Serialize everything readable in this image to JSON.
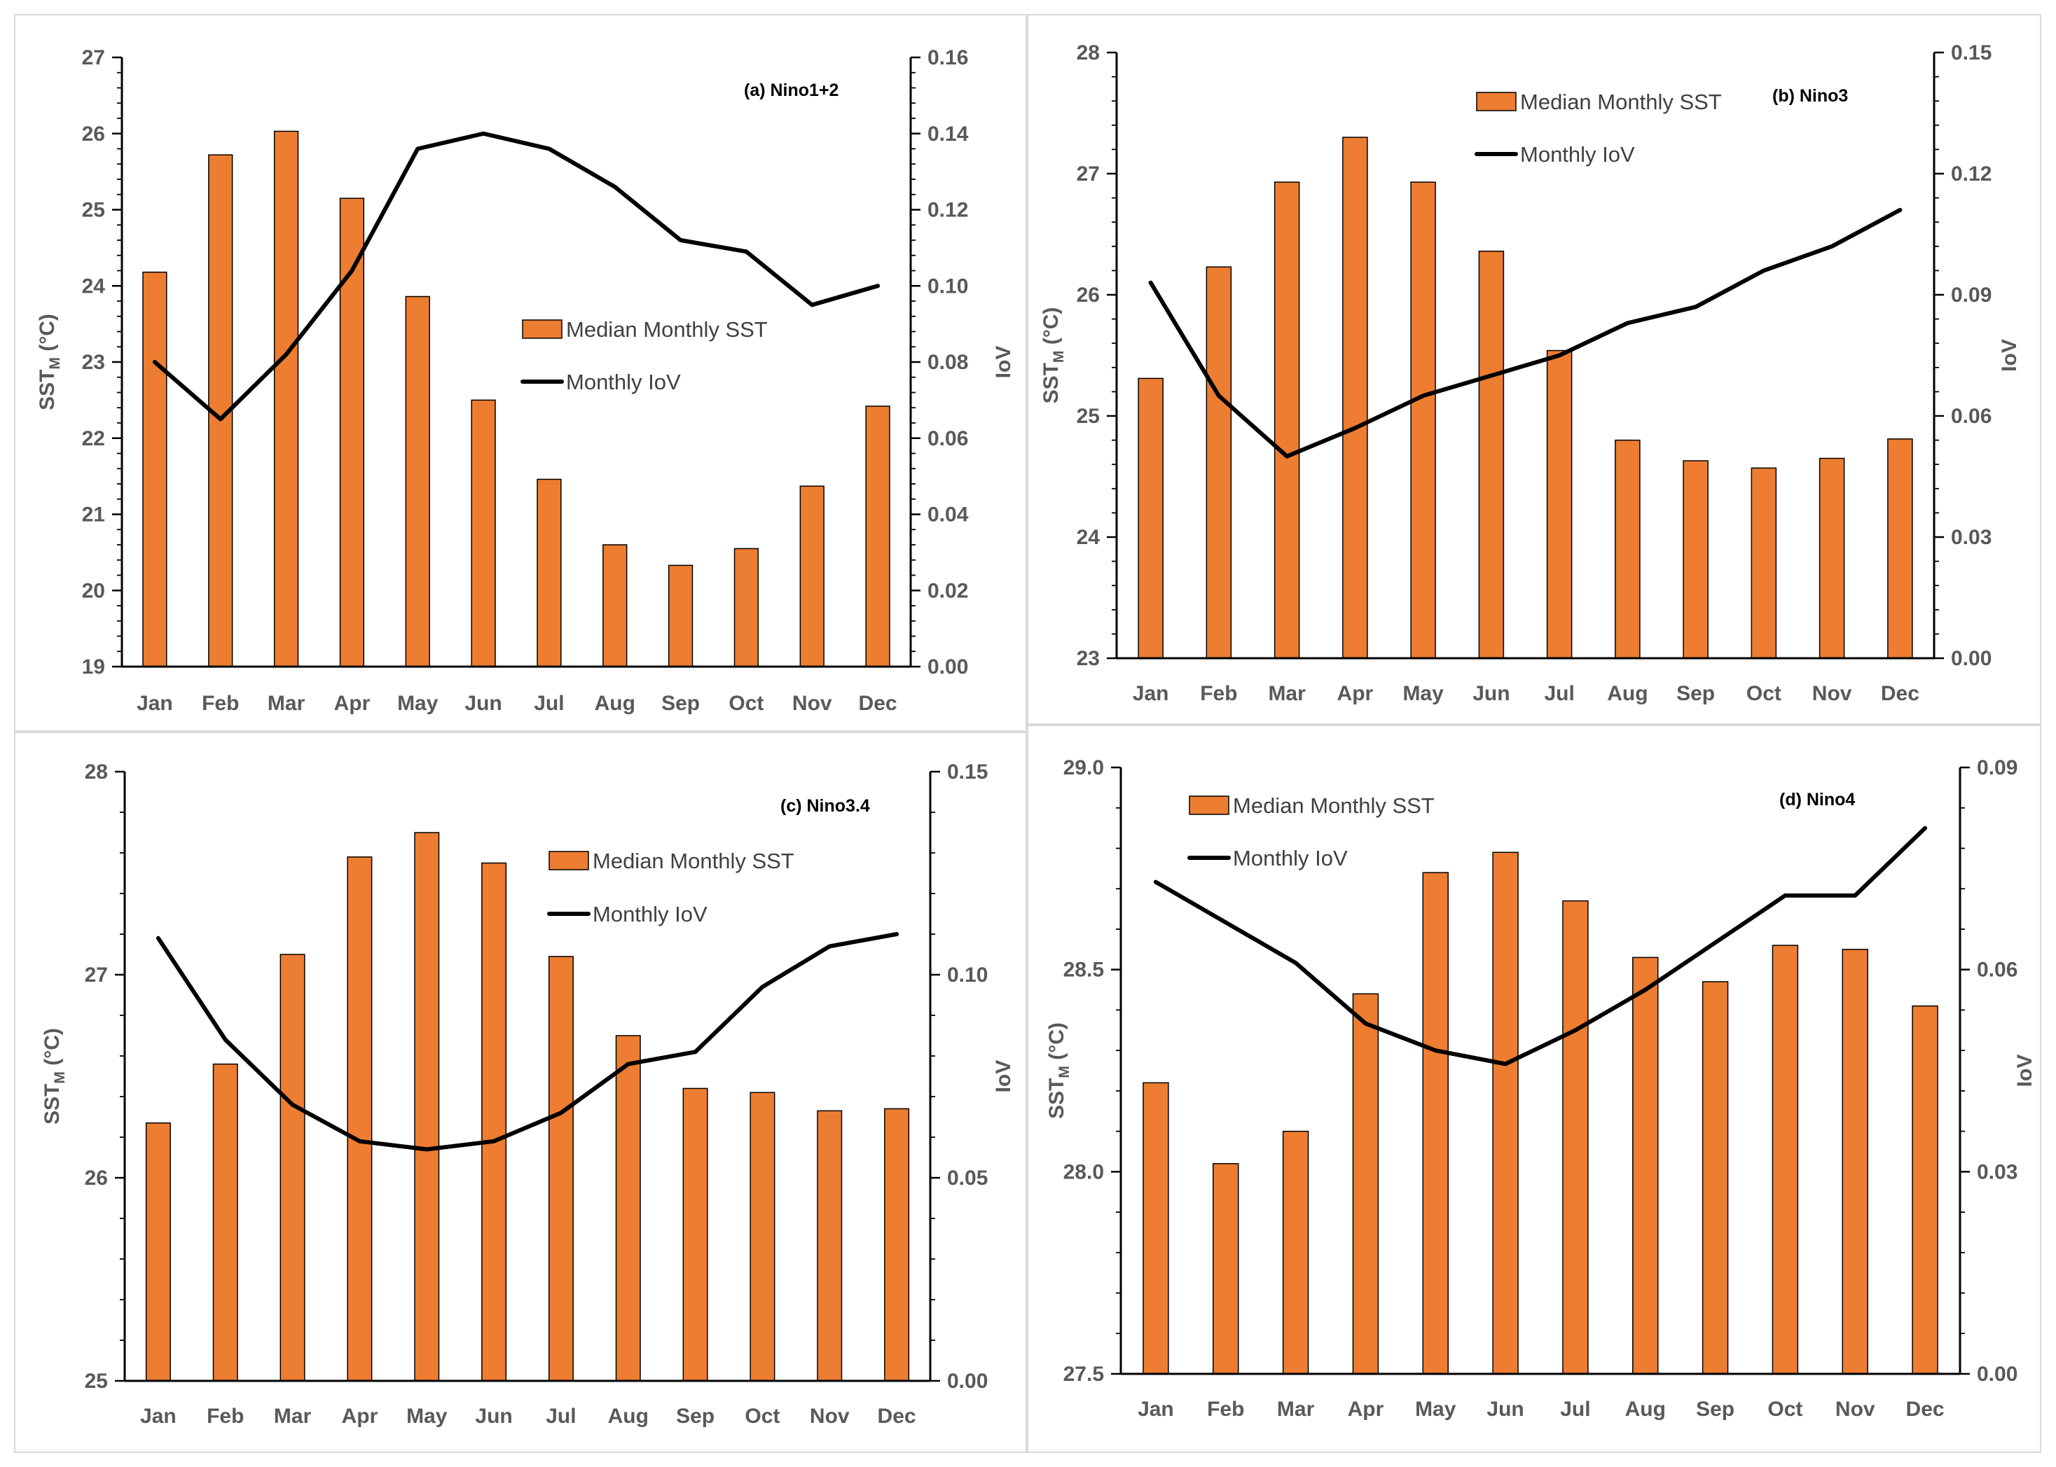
{
  "chart_data": [
    {
      "id": "a",
      "type": "bar",
      "title": "(a) Nino1+2",
      "categories": [
        "Jan",
        "Feb",
        "Mar",
        "Apr",
        "May",
        "Jun",
        "Jul",
        "Aug",
        "Sep",
        "Oct",
        "Nov",
        "Dec"
      ],
      "series": [
        {
          "name": "Median Monthly SST",
          "kind": "bar",
          "axis": "left",
          "values": [
            24.18,
            25.72,
            26.03,
            25.15,
            23.86,
            22.5,
            21.46,
            20.6,
            20.33,
            20.55,
            21.37,
            22.42
          ]
        },
        {
          "name": "Monthly IoV",
          "kind": "line",
          "axis": "right",
          "values": [
            0.08,
            0.065,
            0.082,
            0.104,
            0.136,
            0.14,
            0.136,
            0.126,
            0.112,
            0.109,
            0.095,
            0.1
          ]
        }
      ],
      "ylabel": "SST",
      "ylabel_sub": "M",
      "ylabel_unit": " (°C)",
      "y2label": "IoV",
      "ylim": [
        19,
        27
      ],
      "yticks": [
        19,
        20,
        21,
        22,
        23,
        24,
        25,
        26,
        27
      ],
      "ytick_labels": [
        "19",
        "20",
        "21",
        "22",
        "23",
        "24",
        "25",
        "26",
        "27"
      ],
      "y2lim": [
        0,
        0.16
      ],
      "y2ticks": [
        0,
        0.02,
        0.04,
        0.06,
        0.08,
        0.1,
        0.12,
        0.14,
        0.16
      ],
      "y2tick_labels": [
        "0.00",
        "0.02",
        "0.04",
        "0.06",
        "0.08",
        "0.10",
        "0.12",
        "0.14",
        "0.16"
      ],
      "legend_position": "center-right"
    },
    {
      "id": "b",
      "type": "bar",
      "title": "(b) Nino3",
      "categories": [
        "Jan",
        "Feb",
        "Mar",
        "Apr",
        "May",
        "Jun",
        "Jul",
        "Aug",
        "Sep",
        "Oct",
        "Nov",
        "Dec"
      ],
      "series": [
        {
          "name": "Median Monthly SST",
          "kind": "bar",
          "axis": "left",
          "values": [
            25.31,
            26.23,
            26.93,
            27.3,
            26.93,
            26.36,
            25.54,
            24.8,
            24.63,
            24.57,
            24.65,
            24.81
          ]
        },
        {
          "name": "Monthly IoV",
          "kind": "line",
          "axis": "right",
          "values": [
            0.093,
            0.065,
            0.05,
            0.057,
            0.065,
            0.07,
            0.075,
            0.083,
            0.087,
            0.096,
            0.102,
            0.111
          ]
        }
      ],
      "ylabel": "SST",
      "ylabel_sub": "M",
      "ylabel_unit": " (°C)",
      "y2label": "IoV",
      "ylim": [
        23,
        28
      ],
      "yticks": [
        23,
        24,
        25,
        26,
        27,
        28
      ],
      "ytick_labels": [
        "23",
        "24",
        "25",
        "26",
        "27",
        "28"
      ],
      "y2lim": [
        0,
        0.15
      ],
      "y2ticks": [
        0,
        0.03,
        0.06,
        0.09,
        0.12,
        0.15
      ],
      "y2tick_labels": [
        "0.00",
        "0.03",
        "0.06",
        "0.09",
        "0.12",
        "0.15"
      ],
      "legend_position": "top-center"
    },
    {
      "id": "c",
      "type": "bar",
      "title": "(c) Nino3.4",
      "categories": [
        "Jan",
        "Feb",
        "Mar",
        "Apr",
        "May",
        "Jun",
        "Jul",
        "Aug",
        "Sep",
        "Oct",
        "Nov",
        "Dec"
      ],
      "series": [
        {
          "name": "Median Monthly SST",
          "kind": "bar",
          "axis": "left",
          "values": [
            26.27,
            26.56,
            27.1,
            27.58,
            27.7,
            27.55,
            27.09,
            26.7,
            26.44,
            26.42,
            26.33,
            26.34
          ]
        },
        {
          "name": "Monthly IoV",
          "kind": "line",
          "axis": "right",
          "values": [
            0.109,
            0.084,
            0.068,
            0.059,
            0.057,
            0.059,
            0.066,
            0.078,
            0.081,
            0.097,
            0.107,
            0.11
          ]
        }
      ],
      "ylabel": "SST",
      "ylabel_sub": "M",
      "ylabel_unit": " (°C)",
      "y2label": "IoV",
      "ylim": [
        25,
        28
      ],
      "yticks": [
        25,
        26,
        27,
        28
      ],
      "ytick_labels": [
        "25",
        "26",
        "27",
        "28"
      ],
      "y2lim": [
        0,
        0.15
      ],
      "y2ticks": [
        0,
        0.05,
        0.1,
        0.15
      ],
      "y2tick_labels": [
        "0.00",
        "0.05",
        "0.10",
        "0.15"
      ],
      "legend_position": "top-right"
    },
    {
      "id": "d",
      "type": "bar",
      "title": "(d) Nino4",
      "categories": [
        "Jan",
        "Feb",
        "Mar",
        "Apr",
        "May",
        "Jun",
        "Jul",
        "Aug",
        "Sep",
        "Oct",
        "Nov",
        "Dec"
      ],
      "series": [
        {
          "name": "Median Monthly SST",
          "kind": "bar",
          "axis": "left",
          "values": [
            28.22,
            28.02,
            28.1,
            28.44,
            28.74,
            28.79,
            28.67,
            28.53,
            28.47,
            28.56,
            28.55,
            28.41
          ]
        },
        {
          "name": "Monthly IoV",
          "kind": "line",
          "axis": "right",
          "values": [
            0.073,
            0.067,
            0.061,
            0.052,
            0.048,
            0.046,
            0.051,
            0.057,
            0.064,
            0.071,
            0.071,
            0.081
          ]
        }
      ],
      "ylabel": "SST",
      "ylabel_sub": "M",
      "ylabel_unit": " (°C)",
      "y2label": "IoV",
      "ylim": [
        27.5,
        29.0
      ],
      "yticks": [
        27.5,
        28.0,
        28.5,
        29.0
      ],
      "ytick_labels": [
        "27.5",
        "28.0",
        "28.5",
        "29.0"
      ],
      "y2lim": [
        0,
        0.09
      ],
      "y2ticks": [
        0,
        0.03,
        0.06,
        0.09
      ],
      "y2tick_labels": [
        "0.00",
        "0.03",
        "0.06",
        "0.09"
      ],
      "legend_position": "top-left"
    }
  ],
  "colors": {
    "bar_fill": "#ED7D31",
    "bar_stroke": "#000000",
    "line": "#000000",
    "axis": "#000000",
    "text": "#595959"
  }
}
